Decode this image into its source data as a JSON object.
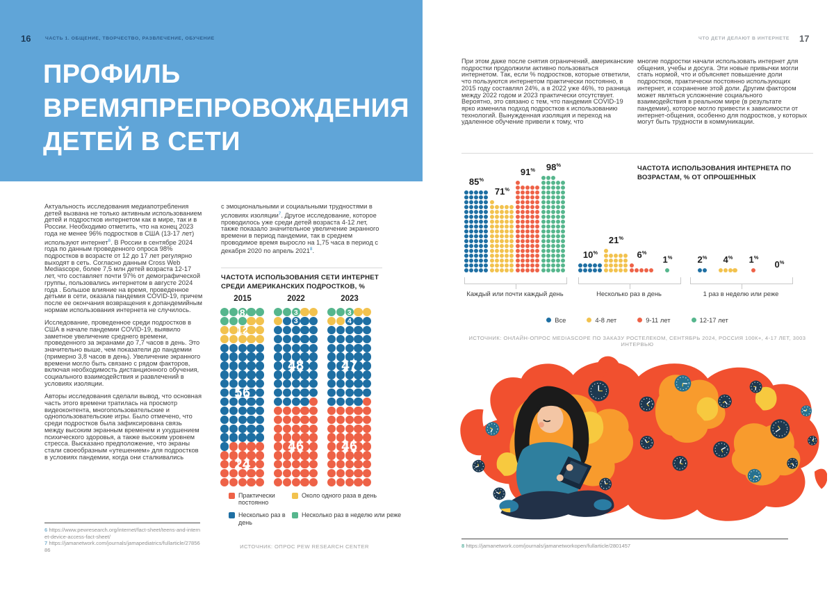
{
  "palette": {
    "header_bg": "#60a5d8",
    "dot_blue": "#1e6fa3",
    "dot_yellow": "#f2c24e",
    "dot_red": "#ee6247",
    "dot_green": "#56b68d"
  },
  "left_page": {
    "page_number": "16",
    "running_head": "ЧАСТЬ 1. ОБЩЕНИЕ, ТВОРЧЕСТВО, РАЗВЛЕЧЕНИЕ, ОБУЧЕНИЕ",
    "title_lines": [
      "ПРОФИЛЬ",
      "ВРЕМЯПРЕПРОВОЖДЕНИЯ",
      "ДЕТЕЙ В СЕТИ"
    ],
    "column1_paragraphs": [
      [
        {
          "t": "Актуальность исследования медиапотребления детей вызвана не только активным использованием детей и подростков интернетом как в мире, так и в России. Необходимо отметить, что на конец 2023 года не менее 96% подростков в США (13-17 лет) используют интернет"
        },
        {
          "sup": "6"
        },
        {
          "t": ". В России в сентябре 2024 года по данным проведенного опроса 98% подростков в возрасте от 12 до 17 лет регулярно выходят в сеть. Согласно данным Cross Web Mediascope, более 7,5 млн детей возраста 12-17 лет, что составляет почти 97% от демографической группы, пользовались интернетом в августе 2024 года . Большое влияние на время, проведенное детьми в сети, оказала пандемия COVID-19, причем после ее окончания возвращения к допандемийным нормам использования интернета не случилось."
        }
      ],
      [
        {
          "t": "Исследование, проведенное среди подростков в США в начале пандемии COVID-19, выявило заметное увеличение среднего времени, проведенного за экранами до 7,7 часов в день. Это значительно выше, чем показатели до пандемии (примерно 3,8 часов в день). Увеличение экранного времени могло быть связано с рядом факторов, включая необходимость дистанционного обучения, социального взаимодействия и развлечений в условиях изоляции."
        }
      ],
      [
        {
          "t": "Авторы исследования сделали вывод, что основная часть этого времени тратилась на просмотр видеоконтента, многопользовательские и однопользовательские игры. Было отмечено, что среди подростков была зафиксирована связь между высоким экранным временем и ухудшением психического здоровья, а также высоким уровнем стресса. Высказано предположение, что экраны стали своеобразным «утешением» для подростков в условиях пандемии, когда они сталкивались"
        }
      ]
    ],
    "column2_paragraph": [
      {
        "t": "с эмоциональными и социальными трудностями в условиях изоляции"
      },
      {
        "sup": "7"
      },
      {
        "t": ". Другое исследование, которое проводилось уже среди детей возраста 4-12 лет, также показало значительное увеличение экранного времени в период пандемии, так в среднем проводимое время выросло на 1,75 часа в период с декабря 2020 по апрель 2021"
      },
      {
        "sup": "8"
      },
      {
        "t": "."
      }
    ],
    "footnotes": [
      {
        "marker": "6",
        "marker_color": "#7fb3cf",
        "url": "https://www.pewresearch.org/internet/fact-sheet/teens-and-internet-device-access-fact-sheet/"
      },
      {
        "marker": "7",
        "marker_color": "#7fb3cf",
        "url": "https://jamanetwork.com/journals/jamapediatrics/fullarticle/2785686"
      }
    ]
  },
  "right_page": {
    "page_number": "17",
    "running_head": "ЧТО ДЕТИ ДЕЛАЮТ В ИНТЕРНЕТЕ",
    "column1_paragraph": [
      {
        "t": "При этом даже после снятия ограничений, американские подростки продолжили активно пользоваться интернетом. Так, если % подростков, которые ответили, что пользуются интернетом практически постоянно, в 2015 году составлял 24%, а в 2022 уже 46%, то разница между 2022 годом и 2023 практически отсутствует. Вероятно, это связано с тем, что пандемия COVID-19 ярко изменила подход подростков к использованию технологий. Вынужденная изоляция и переход на удаленное обучение привели к тому, что"
      }
    ],
    "column2_paragraph": [
      {
        "t": "многие подростки начали использовать интернет для общения, учебы и досуга. Эти новые привычки могли стать нормой, что и объясняет повышение доли подростков, практически постоянно использующих интернет, и сохранение этой доли. Другим фактором может являться усложнение социального взаимодействия в реальном мире (в результате пандемии), которое могло привести к зависимости от интернет-общения, особенно для подростков, у которых могут быть трудности в коммуникации."
      }
    ],
    "footnotes": [
      {
        "marker": "8",
        "marker_color": "#62b5a4",
        "url": "https://jamanetwork.com/journals/jamanetworkopen/fullarticle/2801457"
      }
    ],
    "illustration": {
      "name": "girl-with-tablet-among-flames-and-clocks"
    }
  },
  "chart_data": [
    {
      "id": "us-teens-internet-frequency",
      "type": "waffle",
      "title": "ЧАСТОТА ИСПОЛЬЗОВАНИЯ СЕТИ ИНТЕРНЕТ СРЕДИ АМЕРИКАНСКИХ ПОДРОСТКОВ, %",
      "unit": "%",
      "categories": [
        "2015",
        "2022",
        "2023"
      ],
      "series": [
        {
          "name": "Несколько раз в неделю или реже",
          "color": "#56b68d",
          "values": [
            8,
            3,
            3
          ]
        },
        {
          "name": "Около одного раза в день",
          "color": "#f2c24e",
          "values": [
            12,
            3,
            4
          ]
        },
        {
          "name": "Несколько раз в день",
          "color": "#1e6fa3",
          "values": [
            56,
            48,
            47
          ]
        },
        {
          "name": "Практически постоянно",
          "color": "#ee6247",
          "values": [
            24,
            46,
            46
          ]
        }
      ],
      "legend": [
        {
          "label": "Практически постоянно",
          "color": "#ee6247"
        },
        {
          "label": "Около одного раза в день",
          "color": "#f2c24e"
        },
        {
          "label": "Несколько раз в день",
          "color": "#1e6fa3"
        },
        {
          "label": "Несколько раз в неделю или реже",
          "color": "#56b68d"
        }
      ],
      "source": "ИСТОЧНИК: ОПРОС PEW RESEARCH CENTER"
    },
    {
      "id": "internet-frequency-by-age",
      "type": "dot-bar",
      "title": "ЧАСТОТА ИСПОЛЬЗОВАНИЯ ИНТЕРНЕТА ПО ВОЗРАСТАМ, % ОТ ОПРОШЕННЫХ",
      "unit": "%",
      "series": [
        {
          "name": "Все",
          "color": "#1e6fa3"
        },
        {
          "name": "4-8 лет",
          "color": "#f2c24e"
        },
        {
          "name": "9-11 лет",
          "color": "#ee6247"
        },
        {
          "name": "12-17 лет",
          "color": "#56b68d"
        }
      ],
      "groups": [
        {
          "label": "Каждый или почти каждый день",
          "values": [
            85,
            71,
            91,
            98
          ]
        },
        {
          "label": "Несколько раз в день",
          "values": [
            10,
            21,
            6,
            1
          ]
        },
        {
          "label": "1 раз в неделю или реже",
          "values": [
            2,
            4,
            1,
            0
          ]
        }
      ],
      "source": "ИСТОЧНИК: ОНЛАЙН-ОПРОС MEDIASCOPE ПО ЗАКАЗУ РОСТЕЛЕКОМ, СЕНТЯБРЬ 2024, РОССИЯ 100К+, 4-17 ЛЕТ, 3003 ИНТЕРВЬЮ"
    }
  ]
}
